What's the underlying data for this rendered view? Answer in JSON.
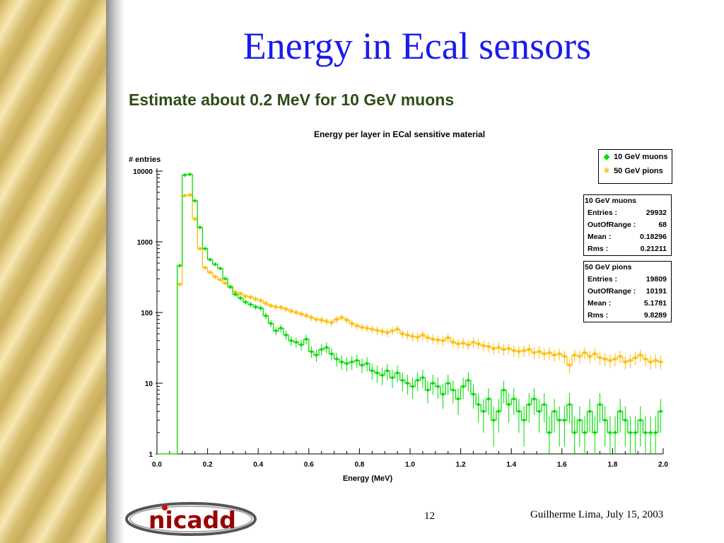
{
  "slide": {
    "title": "Energy in Ecal sensors",
    "subtitle": "Estimate about 0.2 MeV for 10 GeV muons",
    "page_number": "12",
    "author_date": "Guilherme Lima, July 15, 2003",
    "logo_text": "nicadd"
  },
  "legend": {
    "items": [
      {
        "label": "10 GeV muons",
        "symbol": "◆",
        "color": "#00dd00"
      },
      {
        "label": "50 GeV pions",
        "symbol": "✳",
        "color": "#ffbb00"
      }
    ]
  },
  "stats": [
    {
      "title": "10 GeV muons",
      "rows": [
        {
          "label": "Entries :",
          "value": "29932"
        },
        {
          "label": "OutOfRange :",
          "value": "68"
        },
        {
          "label": "Mean :",
          "value": "0.18296"
        },
        {
          "label": "Rms :",
          "value": "0.21211"
        }
      ]
    },
    {
      "title": "50 GeV pions",
      "rows": [
        {
          "label": "Entries :",
          "value": "19809"
        },
        {
          "label": "OutOfRange :",
          "value": "10191"
        },
        {
          "label": "Mean :",
          "value": "5.1781"
        },
        {
          "label": "Rms :",
          "value": "9.8289"
        }
      ]
    }
  ],
  "chart_data": {
    "type": "line",
    "title": "Energy per layer in ECal sensitive material",
    "xlabel": "Energy (MeV)",
    "ylabel": "# entries",
    "xlim": [
      0,
      2.0
    ],
    "ylim": [
      1,
      10000
    ],
    "yscale": "log",
    "grid": false,
    "legend_position": "top-right",
    "x_ticks": [
      "0.0",
      "0.2",
      "0.4",
      "0.6",
      "0.8",
      "1.0",
      "1.2",
      "1.4",
      "1.6",
      "1.8",
      "2.0"
    ],
    "y_ticks": [
      "1",
      "10",
      "100",
      "1000",
      "10000"
    ],
    "bin_width": 0.02,
    "series": [
      {
        "name": "10 GeV muons",
        "color": "#00dd00",
        "x": [
          0.01,
          0.03,
          0.05,
          0.07,
          0.09,
          0.11,
          0.13,
          0.15,
          0.17,
          0.19,
          0.21,
          0.23,
          0.25,
          0.27,
          0.29,
          0.31,
          0.33,
          0.35,
          0.37,
          0.39,
          0.41,
          0.43,
          0.45,
          0.47,
          0.49,
          0.51,
          0.53,
          0.55,
          0.57,
          0.59,
          0.61,
          0.63,
          0.65,
          0.67,
          0.69,
          0.71,
          0.73,
          0.75,
          0.77,
          0.79,
          0.81,
          0.83,
          0.85,
          0.87,
          0.89,
          0.91,
          0.93,
          0.95,
          0.97,
          0.99,
          1.01,
          1.03,
          1.05,
          1.07,
          1.09,
          1.11,
          1.13,
          1.15,
          1.17,
          1.19,
          1.21,
          1.23,
          1.25,
          1.27,
          1.29,
          1.31,
          1.33,
          1.35,
          1.37,
          1.39,
          1.41,
          1.43,
          1.45,
          1.47,
          1.49,
          1.51,
          1.53,
          1.55,
          1.57,
          1.59,
          1.61,
          1.63,
          1.65,
          1.67,
          1.69,
          1.71,
          1.73,
          1.75,
          1.77,
          1.79,
          1.81,
          1.83,
          1.85,
          1.87,
          1.89,
          1.91,
          1.93,
          1.95,
          1.97,
          1.99
        ],
        "y": [
          1,
          1,
          1,
          1,
          460,
          8800,
          9000,
          3800,
          1600,
          800,
          560,
          480,
          420,
          300,
          230,
          180,
          160,
          140,
          130,
          120,
          115,
          90,
          70,
          55,
          60,
          48,
          40,
          38,
          35,
          42,
          28,
          25,
          30,
          32,
          26,
          22,
          20,
          19,
          20,
          21,
          18,
          19,
          15,
          14,
          13,
          15,
          12,
          14,
          11,
          10,
          9,
          11,
          12,
          8,
          10,
          9,
          7,
          10,
          8,
          6,
          9,
          11,
          7,
          5,
          4,
          6,
          3,
          4,
          8,
          5,
          6,
          4,
          3,
          5,
          6,
          4,
          5,
          2,
          4,
          3,
          3,
          5,
          2,
          3,
          2,
          4,
          2,
          5,
          3,
          2,
          2,
          4,
          3,
          2,
          2,
          3,
          2,
          2,
          2,
          4
        ]
      },
      {
        "name": "50 GeV pions",
        "color": "#ffbb00",
        "x": [
          0.01,
          0.03,
          0.05,
          0.07,
          0.09,
          0.11,
          0.13,
          0.15,
          0.17,
          0.19,
          0.21,
          0.23,
          0.25,
          0.27,
          0.29,
          0.31,
          0.33,
          0.35,
          0.37,
          0.39,
          0.41,
          0.43,
          0.45,
          0.47,
          0.49,
          0.51,
          0.53,
          0.55,
          0.57,
          0.59,
          0.61,
          0.63,
          0.65,
          0.67,
          0.69,
          0.71,
          0.73,
          0.75,
          0.77,
          0.79,
          0.81,
          0.83,
          0.85,
          0.87,
          0.89,
          0.91,
          0.93,
          0.95,
          0.97,
          0.99,
          1.01,
          1.03,
          1.05,
          1.07,
          1.09,
          1.11,
          1.13,
          1.15,
          1.17,
          1.19,
          1.21,
          1.23,
          1.25,
          1.27,
          1.29,
          1.31,
          1.33,
          1.35,
          1.37,
          1.39,
          1.41,
          1.43,
          1.45,
          1.47,
          1.49,
          1.51,
          1.53,
          1.55,
          1.57,
          1.59,
          1.61,
          1.63,
          1.65,
          1.67,
          1.69,
          1.71,
          1.73,
          1.75,
          1.77,
          1.79,
          1.81,
          1.83,
          1.85,
          1.87,
          1.89,
          1.91,
          1.93,
          1.95,
          1.97,
          1.99
        ],
        "y": [
          1,
          1,
          1,
          1,
          250,
          4500,
          4600,
          2100,
          800,
          430,
          370,
          320,
          290,
          260,
          230,
          195,
          185,
          170,
          165,
          155,
          148,
          135,
          125,
          120,
          118,
          112,
          105,
          100,
          95,
          90,
          85,
          80,
          78,
          75,
          72,
          80,
          85,
          78,
          70,
          65,
          62,
          60,
          58,
          56,
          54,
          52,
          55,
          58,
          50,
          48,
          46,
          45,
          48,
          44,
          42,
          41,
          40,
          44,
          38,
          36,
          37,
          35,
          38,
          36,
          34,
          33,
          31,
          32,
          30,
          31,
          29,
          28,
          29,
          30,
          27,
          28,
          26,
          27,
          25,
          26,
          24,
          18,
          25,
          24,
          27,
          24,
          26,
          23,
          22,
          21,
          22,
          24,
          20,
          21,
          23,
          25,
          22,
          20,
          21,
          20
        ]
      }
    ]
  }
}
